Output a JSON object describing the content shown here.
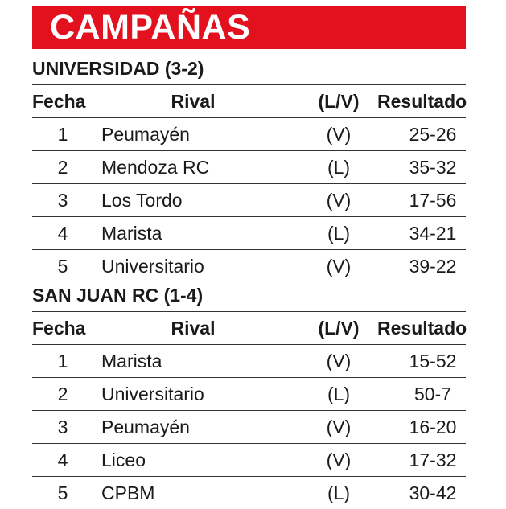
{
  "title": "CAMPAÑAS",
  "columns": {
    "fecha": "Fecha",
    "rival": "Rival",
    "lv": "(L/V)",
    "resultado": "Resultado"
  },
  "teams": [
    {
      "heading": "UNIVERSIDAD (3-2)",
      "rows": [
        {
          "fecha": "1",
          "rival": "Peumayén",
          "lv": "(V)",
          "resultado": "25-26"
        },
        {
          "fecha": "2",
          "rival": "Mendoza RC",
          "lv": "(L)",
          "resultado": "35-32"
        },
        {
          "fecha": "3",
          "rival": "Los Tordo",
          "lv": "(V)",
          "resultado": "17-56"
        },
        {
          "fecha": "4",
          "rival": "Marista",
          "lv": "(L)",
          "resultado": "34-21"
        },
        {
          "fecha": "5",
          "rival": "Universitario",
          "lv": "(V)",
          "resultado": "39-22"
        }
      ]
    },
    {
      "heading": "SAN JUAN RC (1-4)",
      "rows": [
        {
          "fecha": "1",
          "rival": "Marista",
          "lv": "(V)",
          "resultado": "15-52"
        },
        {
          "fecha": "2",
          "rival": "Universitario",
          "lv": "(L)",
          "resultado": "50-7"
        },
        {
          "fecha": "3",
          "rival": "Peumayén",
          "lv": "(V)",
          "resultado": "16-20"
        },
        {
          "fecha": "4",
          "rival": "Liceo",
          "lv": "(V)",
          "resultado": "17-32"
        },
        {
          "fecha": "5",
          "rival": "CPBM",
          "lv": "(L)",
          "resultado": "30-42"
        }
      ]
    }
  ]
}
